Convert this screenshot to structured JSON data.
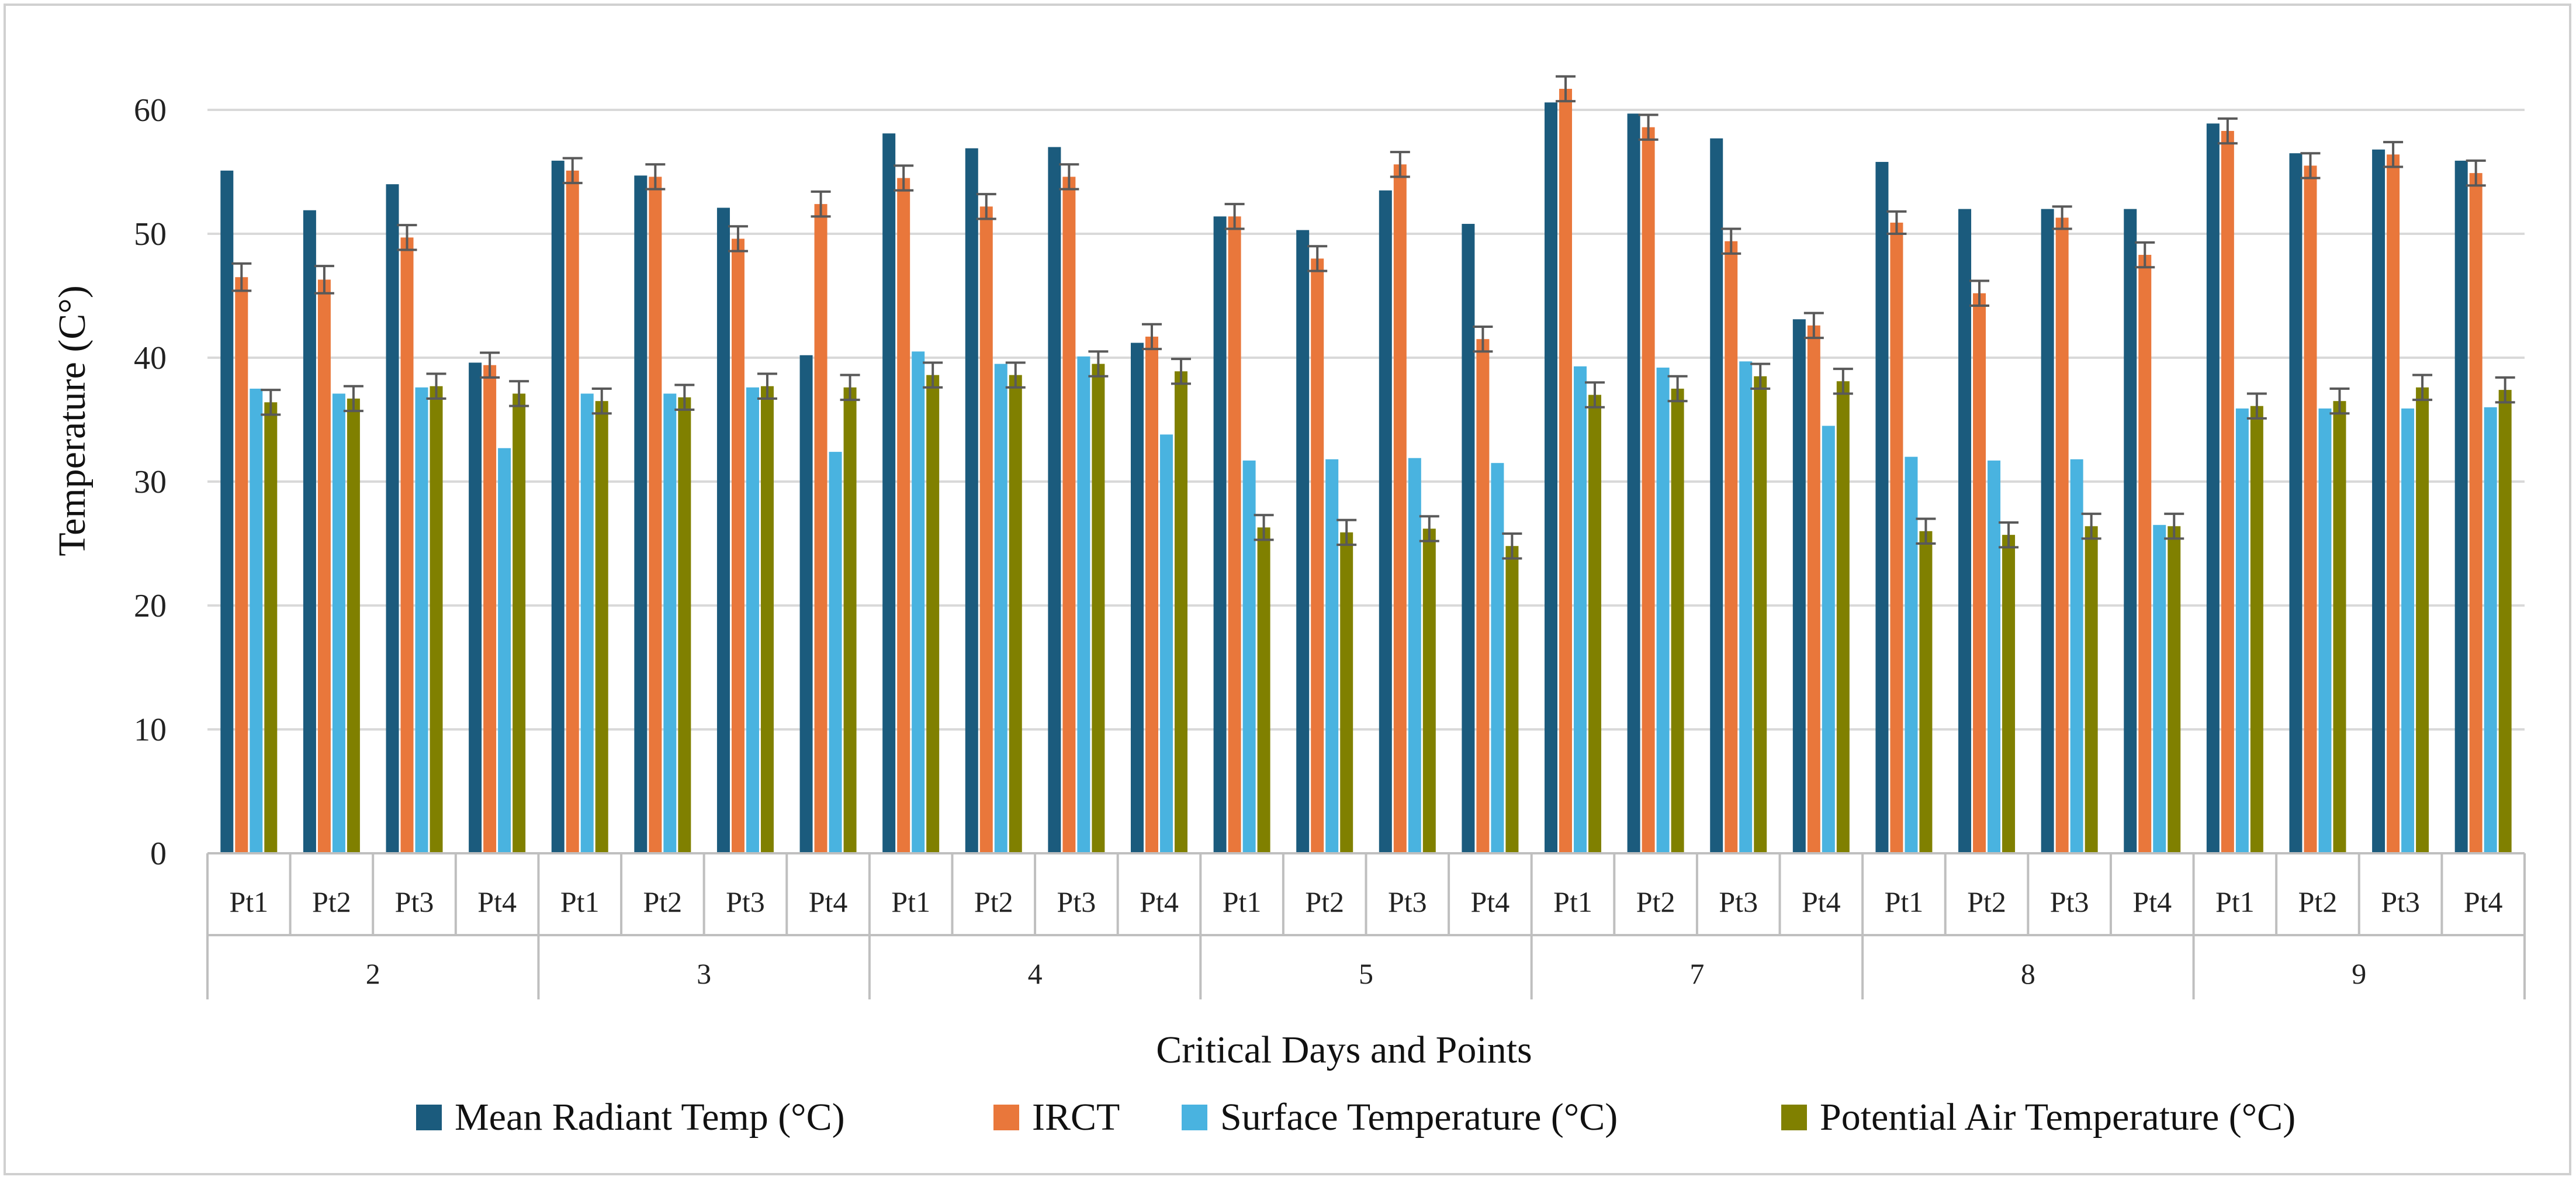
{
  "chart_data": {
    "type": "bar",
    "xlabel": "Critical Days and Points",
    "ylabel": "Temperature (C°)",
    "ylim": [
      0,
      60
    ],
    "yticks": [
      0,
      10,
      20,
      30,
      40,
      50,
      60
    ],
    "grid": true,
    "legend_position": "bottom",
    "groups": [
      "2",
      "3",
      "4",
      "5",
      "7",
      "8",
      "9"
    ],
    "points": [
      "Pt1",
      "Pt2",
      "Pt3",
      "Pt4"
    ],
    "categories": [
      "2-Pt1",
      "2-Pt2",
      "2-Pt3",
      "2-Pt4",
      "3-Pt1",
      "3-Pt2",
      "3-Pt3",
      "3-Pt4",
      "4-Pt1",
      "4-Pt2",
      "4-Pt3",
      "4-Pt4",
      "5-Pt1",
      "5-Pt2",
      "5-Pt3",
      "5-Pt4",
      "7-Pt1",
      "7-Pt2",
      "7-Pt3",
      "7-Pt4",
      "8-Pt1",
      "8-Pt2",
      "8-Pt3",
      "8-Pt4",
      "9-Pt1",
      "9-Pt2",
      "9-Pt3",
      "9-Pt4"
    ],
    "series": [
      {
        "name": "Mean Radiant Temp (°C)",
        "color": "#1b5b7d",
        "values": [
          55.1,
          51.9,
          54.0,
          39.6,
          55.9,
          54.7,
          52.1,
          40.2,
          58.1,
          56.9,
          57.0,
          41.2,
          51.4,
          50.3,
          53.5,
          50.8,
          60.6,
          59.7,
          57.7,
          43.1,
          55.8,
          52.0,
          52.0,
          52.0,
          58.9,
          56.5,
          56.8,
          55.9
        ],
        "error": null
      },
      {
        "name": "IRCT",
        "color": "#e9773b",
        "values": [
          46.5,
          46.3,
          49.7,
          39.4,
          55.1,
          54.6,
          49.6,
          52.4,
          54.5,
          52.2,
          54.6,
          41.7,
          51.4,
          48.0,
          55.6,
          41.5,
          61.7,
          58.6,
          49.4,
          42.6,
          50.9,
          45.2,
          51.3,
          48.3,
          58.3,
          55.5,
          56.4,
          54.9
        ],
        "error": [
          1.1,
          1.1,
          1.0,
          1.0,
          1.0,
          1.0,
          1.0,
          1.0,
          1.0,
          1.0,
          1.0,
          1.0,
          1.0,
          1.0,
          1.0,
          1.0,
          1.0,
          1.0,
          1.0,
          1.0,
          0.9,
          1.0,
          0.9,
          1.0,
          1.0,
          1.0,
          1.0,
          1.0
        ]
      },
      {
        "name": "Surface Temperature (°C)",
        "color": "#49b3e0",
        "values": [
          37.5,
          37.1,
          37.6,
          32.7,
          37.1,
          37.1,
          37.6,
          32.4,
          40.5,
          39.5,
          40.1,
          33.8,
          31.7,
          31.8,
          31.9,
          31.5,
          39.3,
          39.2,
          39.7,
          34.5,
          32.0,
          31.7,
          31.8,
          26.5,
          35.9,
          35.9,
          35.9,
          36.0
        ],
        "error": null
      },
      {
        "name": "Potential Air Temperature (°C)",
        "color": "#808000",
        "values": [
          36.4,
          36.7,
          37.7,
          37.1,
          36.5,
          36.8,
          37.7,
          37.6,
          38.6,
          38.6,
          39.5,
          38.9,
          26.3,
          25.9,
          26.2,
          24.8,
          37.0,
          37.5,
          38.5,
          38.1,
          26.0,
          25.7,
          26.4,
          26.4,
          36.1,
          36.5,
          37.6,
          37.4
        ],
        "error": [
          1.0,
          1.0,
          1.0,
          1.0,
          1.0,
          1.0,
          1.0,
          1.0,
          1.0,
          1.0,
          1.0,
          1.0,
          1.0,
          1.0,
          1.0,
          1.0,
          1.0,
          1.0,
          1.0,
          1.0,
          1.0,
          1.0,
          1.0,
          1.0,
          1.0,
          1.0,
          1.0,
          1.0
        ]
      }
    ]
  }
}
